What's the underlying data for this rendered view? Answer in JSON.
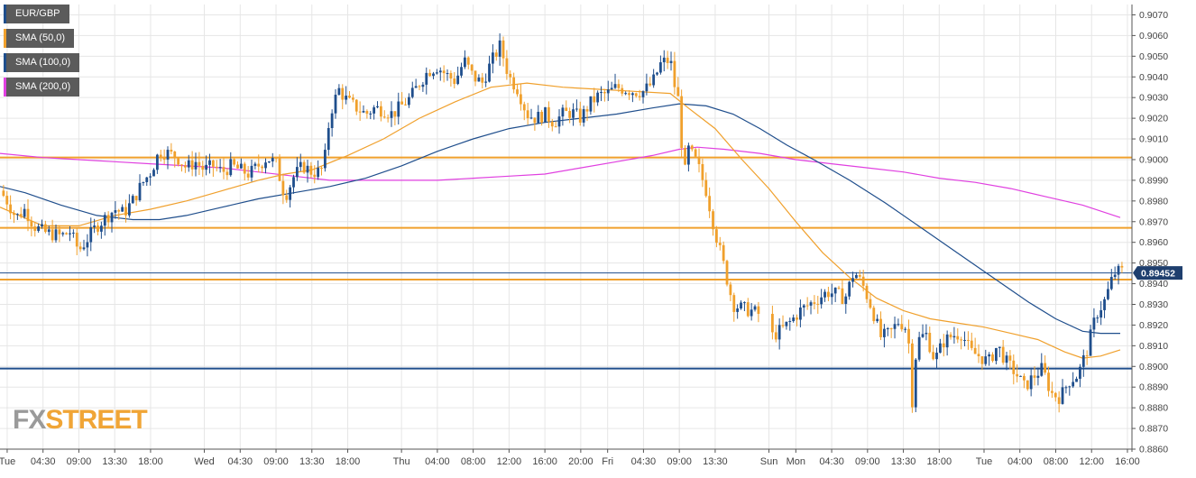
{
  "chart_data": {
    "type": "candlestick",
    "symbol": "EUR/GBP",
    "price_label": "0.89452",
    "colors": {
      "up": "#1f4e8c",
      "down": "#f0a02c",
      "sma50": "#f0a02c",
      "sma100": "#1f4e8c",
      "sma200": "#e040e0",
      "hline_orange": "#f0a02c",
      "hline_blue": "#1f4e8c",
      "current_price_line": "#1f4e8c",
      "grid": "#e6e6e6"
    },
    "legend": [
      {
        "label": "EUR/GBP",
        "color": "#1f4e8c"
      },
      {
        "label": "SMA (50,0)",
        "color": "#f0a02c"
      },
      {
        "label": "SMA (100,0)",
        "color": "#1f4e8c"
      },
      {
        "label": "SMA (200,0)",
        "color": "#e040e0"
      }
    ],
    "y_range": [
      0.886,
      0.9075
    ],
    "y_ticks": [
      "0.8860",
      "0.8870",
      "0.8880",
      "0.8890",
      "0.8900",
      "0.8910",
      "0.8920",
      "0.8930",
      "0.8940",
      "0.8950",
      "0.8960",
      "0.8970",
      "0.8980",
      "0.8990",
      "0.9000",
      "0.9010",
      "0.9020",
      "0.9030",
      "0.9040",
      "0.9050",
      "0.9060",
      "0.9070"
    ],
    "x_range": [
      -8,
      1246
    ],
    "x_ticks": [
      {
        "x": 0,
        "label": "Tue"
      },
      {
        "x": 40,
        "label": "04:30"
      },
      {
        "x": 80,
        "label": "09:00"
      },
      {
        "x": 120,
        "label": "13:30"
      },
      {
        "x": 160,
        "label": "18:00"
      },
      {
        "x": 220,
        "label": "Wed"
      },
      {
        "x": 260,
        "label": "04:30"
      },
      {
        "x": 300,
        "label": "09:00"
      },
      {
        "x": 340,
        "label": "13:30"
      },
      {
        "x": 380,
        "label": "18:00"
      },
      {
        "x": 440,
        "label": "Thu"
      },
      {
        "x": 480,
        "label": "04:00"
      },
      {
        "x": 520,
        "label": "08:00"
      },
      {
        "x": 560,
        "label": "12:00"
      },
      {
        "x": 600,
        "label": "16:00"
      },
      {
        "x": 640,
        "label": "20:00"
      },
      {
        "x": 670,
        "label": "Fri"
      },
      {
        "x": 710,
        "label": "04:30"
      },
      {
        "x": 750,
        "label": "09:00"
      },
      {
        "x": 790,
        "label": "13:30"
      },
      {
        "x": 850,
        "label": "Sun"
      },
      {
        "x": 880,
        "label": "Mon"
      },
      {
        "x": 920,
        "label": "04:30"
      },
      {
        "x": 960,
        "label": "09:00"
      },
      {
        "x": 1000,
        "label": "13:30"
      },
      {
        "x": 1040,
        "label": "18:00"
      },
      {
        "x": 1090,
        "label": "Tue"
      },
      {
        "x": 1130,
        "label": "04:00"
      },
      {
        "x": 1170,
        "label": "08:00"
      },
      {
        "x": 1210,
        "label": "12:00"
      },
      {
        "x": 1250,
        "label": "16:00"
      }
    ],
    "horizontal_levels": [
      {
        "y": 0.9001,
        "color": "#f0a02c"
      },
      {
        "y": 0.8967,
        "color": "#f0a02c"
      },
      {
        "y": 0.8942,
        "color": "#f0a02c"
      },
      {
        "y": 0.8899,
        "color": "#1f4e8c"
      }
    ],
    "current_price": 0.89452,
    "price_path": [
      [
        -8,
        0.8985
      ],
      [
        0,
        0.898
      ],
      [
        10,
        0.8972
      ],
      [
        20,
        0.8976
      ],
      [
        30,
        0.8968
      ],
      [
        40,
        0.8965
      ],
      [
        50,
        0.8964
      ],
      [
        60,
        0.8963
      ],
      [
        70,
        0.8965
      ],
      [
        80,
        0.8956
      ],
      [
        90,
        0.8962
      ],
      [
        100,
        0.8968
      ],
      [
        110,
        0.8972
      ],
      [
        120,
        0.8976
      ],
      [
        130,
        0.8974
      ],
      [
        140,
        0.898
      ],
      [
        150,
        0.8988
      ],
      [
        160,
        0.8994
      ],
      [
        170,
        0.9004
      ],
      [
        180,
        0.9003
      ],
      [
        190,
        0.9001
      ],
      [
        200,
        0.8996
      ],
      [
        210,
        0.8999
      ],
      [
        220,
        0.8995
      ],
      [
        230,
        0.8997
      ],
      [
        240,
        0.8994
      ],
      [
        250,
        0.8997
      ],
      [
        260,
        0.8995
      ],
      [
        270,
        0.8993
      ],
      [
        280,
        0.8997
      ],
      [
        290,
        0.9001
      ],
      [
        300,
        0.8998
      ],
      [
        310,
        0.8982
      ],
      [
        320,
        0.8992
      ],
      [
        330,
        0.8997
      ],
      [
        340,
        0.8994
      ],
      [
        350,
        0.8994
      ],
      [
        355,
        0.9002
      ],
      [
        360,
        0.9022
      ],
      [
        370,
        0.9034
      ],
      [
        380,
        0.9028
      ],
      [
        390,
        0.9025
      ],
      [
        400,
        0.9022
      ],
      [
        410,
        0.9025
      ],
      [
        420,
        0.9024
      ],
      [
        430,
        0.9022
      ],
      [
        440,
        0.9026
      ],
      [
        450,
        0.903
      ],
      [
        460,
        0.9037
      ],
      [
        470,
        0.9043
      ],
      [
        480,
        0.9045
      ],
      [
        490,
        0.9041
      ],
      [
        500,
        0.9038
      ],
      [
        510,
        0.9048
      ],
      [
        520,
        0.904
      ],
      [
        530,
        0.9037
      ],
      [
        540,
        0.9047
      ],
      [
        550,
        0.9055
      ],
      [
        560,
        0.904
      ],
      [
        570,
        0.9034
      ],
      [
        580,
        0.9022
      ],
      [
        590,
        0.902
      ],
      [
        600,
        0.9022
      ],
      [
        610,
        0.9018
      ],
      [
        620,
        0.9022
      ],
      [
        630,
        0.9023
      ],
      [
        640,
        0.902
      ],
      [
        650,
        0.9027
      ],
      [
        660,
        0.9031
      ],
      [
        670,
        0.9032
      ],
      [
        680,
        0.9035
      ],
      [
        690,
        0.9034
      ],
      [
        700,
        0.9033
      ],
      [
        710,
        0.9033
      ],
      [
        720,
        0.9037
      ],
      [
        730,
        0.9047
      ],
      [
        740,
        0.9048
      ],
      [
        745,
        0.9035
      ],
      [
        750,
        0.9027
      ],
      [
        755,
        0.899
      ],
      [
        760,
        0.9005
      ],
      [
        770,
        0.8998
      ],
      [
        780,
        0.8985
      ],
      [
        790,
        0.8965
      ],
      [
        800,
        0.8948
      ],
      [
        810,
        0.893
      ],
      [
        820,
        0.8928
      ],
      [
        830,
        0.8927
      ],
      [
        840,
        0.8925
      ],
      [
        845,
        0.8912
      ],
      [
        855,
        0.8915
      ],
      [
        865,
        0.8918
      ],
      [
        875,
        0.8922
      ],
      [
        885,
        0.8927
      ],
      [
        895,
        0.893
      ],
      [
        905,
        0.8933
      ],
      [
        915,
        0.8936
      ],
      [
        925,
        0.8935
      ],
      [
        935,
        0.8933
      ],
      [
        945,
        0.8946
      ],
      [
        955,
        0.8939
      ],
      [
        965,
        0.8928
      ],
      [
        975,
        0.8914
      ],
      [
        985,
        0.8916
      ],
      [
        995,
        0.8922
      ],
      [
        1005,
        0.8918
      ],
      [
        1010,
        0.8883
      ],
      [
        1015,
        0.8912
      ],
      [
        1025,
        0.8916
      ],
      [
        1035,
        0.8903
      ],
      [
        1045,
        0.8912
      ],
      [
        1055,
        0.8915
      ],
      [
        1065,
        0.8916
      ],
      [
        1075,
        0.8907
      ],
      [
        1085,
        0.8905
      ],
      [
        1095,
        0.8902
      ],
      [
        1105,
        0.891
      ],
      [
        1115,
        0.8902
      ],
      [
        1125,
        0.8897
      ],
      [
        1135,
        0.889
      ],
      [
        1145,
        0.8895
      ],
      [
        1155,
        0.8899
      ],
      [
        1165,
        0.8887
      ],
      [
        1175,
        0.8885
      ],
      [
        1185,
        0.8893
      ],
      [
        1195,
        0.8896
      ],
      [
        1205,
        0.8908
      ],
      [
        1215,
        0.8925
      ],
      [
        1225,
        0.8932
      ],
      [
        1235,
        0.8945
      ],
      [
        1242,
        0.8946
      ]
    ],
    "sma50": [
      [
        -8,
        0.8977
      ],
      [
        40,
        0.8968
      ],
      [
        80,
        0.8968
      ],
      [
        120,
        0.8973
      ],
      [
        160,
        0.8976
      ],
      [
        200,
        0.898
      ],
      [
        240,
        0.8985
      ],
      [
        280,
        0.899
      ],
      [
        310,
        0.8993
      ],
      [
        340,
        0.8995
      ],
      [
        380,
        0.9002
      ],
      [
        420,
        0.901
      ],
      [
        460,
        0.902
      ],
      [
        500,
        0.9028
      ],
      [
        540,
        0.9035
      ],
      [
        580,
        0.9037
      ],
      [
        620,
        0.9035
      ],
      [
        660,
        0.9034
      ],
      [
        700,
        0.9033
      ],
      [
        740,
        0.9032
      ],
      [
        760,
        0.9025
      ],
      [
        790,
        0.9015
      ],
      [
        820,
        0.9
      ],
      [
        850,
        0.8986
      ],
      [
        880,
        0.897
      ],
      [
        910,
        0.8955
      ],
      [
        940,
        0.8943
      ],
      [
        970,
        0.8933
      ],
      [
        1000,
        0.8927
      ],
      [
        1030,
        0.8923
      ],
      [
        1060,
        0.8921
      ],
      [
        1090,
        0.8919
      ],
      [
        1120,
        0.8916
      ],
      [
        1150,
        0.8913
      ],
      [
        1180,
        0.8907
      ],
      [
        1200,
        0.8904
      ],
      [
        1220,
        0.8905
      ],
      [
        1242,
        0.8908
      ]
    ],
    "sma100": [
      [
        -8,
        0.8987
      ],
      [
        20,
        0.8984
      ],
      [
        60,
        0.8978
      ],
      [
        100,
        0.8973
      ],
      [
        140,
        0.8971
      ],
      [
        170,
        0.8971
      ],
      [
        200,
        0.8973
      ],
      [
        240,
        0.8977
      ],
      [
        280,
        0.8981
      ],
      [
        320,
        0.8984
      ],
      [
        360,
        0.8987
      ],
      [
        400,
        0.8991
      ],
      [
        440,
        0.8997
      ],
      [
        480,
        0.9004
      ],
      [
        520,
        0.901
      ],
      [
        560,
        0.9015
      ],
      [
        600,
        0.9018
      ],
      [
        640,
        0.902
      ],
      [
        680,
        0.9022
      ],
      [
        720,
        0.9025
      ],
      [
        750,
        0.9027
      ],
      [
        780,
        0.9026
      ],
      [
        810,
        0.9022
      ],
      [
        840,
        0.9015
      ],
      [
        870,
        0.9007
      ],
      [
        900,
        0.9
      ],
      [
        940,
        0.899
      ],
      [
        980,
        0.8979
      ],
      [
        1020,
        0.8967
      ],
      [
        1060,
        0.8955
      ],
      [
        1100,
        0.8943
      ],
      [
        1140,
        0.8931
      ],
      [
        1170,
        0.8923
      ],
      [
        1200,
        0.8917
      ],
      [
        1220,
        0.8916
      ],
      [
        1242,
        0.8916
      ]
    ],
    "sma200": [
      [
        -8,
        0.9003
      ],
      [
        40,
        0.9001
      ],
      [
        80,
        0.9
      ],
      [
        120,
        0.8999
      ],
      [
        160,
        0.8998
      ],
      [
        200,
        0.8997
      ],
      [
        240,
        0.8996
      ],
      [
        280,
        0.8994
      ],
      [
        320,
        0.8992
      ],
      [
        360,
        0.899
      ],
      [
        400,
        0.899
      ],
      [
        440,
        0.899
      ],
      [
        480,
        0.899
      ],
      [
        520,
        0.8991
      ],
      [
        560,
        0.8992
      ],
      [
        600,
        0.8993
      ],
      [
        640,
        0.8996
      ],
      [
        680,
        0.8999
      ],
      [
        720,
        0.9002
      ],
      [
        750,
        0.9005
      ],
      [
        770,
        0.9006
      ],
      [
        800,
        0.9005
      ],
      [
        840,
        0.9003
      ],
      [
        880,
        0.9
      ],
      [
        920,
        0.8998
      ],
      [
        960,
        0.8996
      ],
      [
        1000,
        0.8994
      ],
      [
        1040,
        0.8991
      ],
      [
        1080,
        0.8989
      ],
      [
        1120,
        0.8986
      ],
      [
        1160,
        0.8982
      ],
      [
        1200,
        0.8978
      ],
      [
        1242,
        0.8972
      ]
    ]
  },
  "watermark": {
    "part1": "FX",
    "part2": "STREET"
  }
}
